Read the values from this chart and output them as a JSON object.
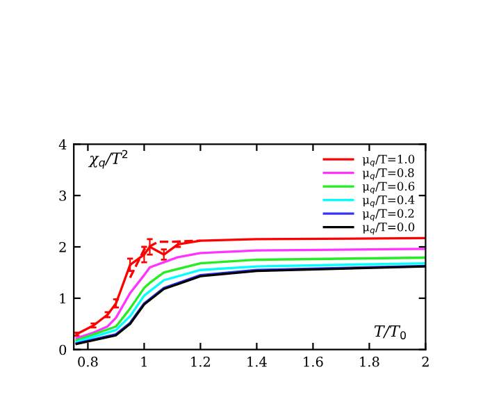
{
  "chart_data": {
    "type": "line",
    "xlabel": "T/T$_{0}$",
    "ylabel": "χ$_{q}$/T$^{2}$",
    "xlim": [
      0.75,
      2.0
    ],
    "ylim": [
      0,
      4
    ],
    "xticks": [
      0.8,
      1,
      1.2,
      1.4,
      1.6,
      1.8,
      2
    ],
    "yticks": [
      0,
      1,
      2,
      3,
      4
    ],
    "grid": false,
    "legend": "top right",
    "series": [
      {
        "name": "μ$_{q}$/T=1.0",
        "color": "#ff0000",
        "x": [
          0.76,
          0.82,
          0.87,
          0.9,
          0.95,
          1.0,
          1.02,
          1.07,
          1.12,
          1.2,
          1.4,
          2.0
        ],
        "values": [
          0.3,
          0.47,
          0.68,
          0.9,
          1.65,
          1.85,
          2.0,
          1.85,
          2.05,
          2.12,
          2.15,
          2.17
        ],
        "errors": [
          0.03,
          0.04,
          0.05,
          0.08,
          0.12,
          0.15,
          0.15,
          0.1,
          0.05,
          null,
          null,
          null
        ]
      },
      {
        "color": "#ff0000",
        "line_style": "dashed",
        "x": [
          0.95,
          1.0,
          1.05,
          1.1,
          1.2
        ],
        "values": [
          1.4,
          1.95,
          2.1,
          2.1,
          2.12
        ]
      },
      {
        "name": "μ$_{q}$/T=0.8",
        "color": "#ff33ff",
        "x": [
          0.76,
          0.82,
          0.87,
          0.9,
          0.95,
          1.0,
          1.02,
          1.07,
          1.12,
          1.2,
          1.4,
          2.0
        ],
        "values": [
          0.22,
          0.33,
          0.45,
          0.62,
          1.1,
          1.45,
          1.6,
          1.7,
          1.8,
          1.88,
          1.93,
          1.96
        ]
      },
      {
        "name": "μ$_{q}$/T=0.6",
        "color": "#22ee22",
        "x": [
          0.76,
          0.9,
          0.95,
          1.0,
          1.02,
          1.07,
          1.2,
          1.4,
          2.0
        ],
        "values": [
          0.18,
          0.45,
          0.8,
          1.2,
          1.3,
          1.5,
          1.68,
          1.75,
          1.79
        ]
      },
      {
        "name": "μ$_{q}$/T=0.4",
        "color": "#00ffff",
        "x": [
          0.76,
          0.9,
          0.95,
          1.0,
          1.07,
          1.2,
          1.4,
          2.0
        ],
        "values": [
          0.15,
          0.38,
          0.65,
          1.05,
          1.35,
          1.55,
          1.62,
          1.68
        ]
      },
      {
        "name": "μ$_{q}$/T=0.2",
        "color": "#3333ff",
        "x": [
          0.76,
          0.9,
          0.95,
          1.0,
          1.07,
          1.2,
          1.4,
          2.0
        ],
        "values": [
          0.12,
          0.3,
          0.52,
          0.9,
          1.2,
          1.45,
          1.55,
          1.63
        ]
      },
      {
        "name": "μ$_{q}$/T=0.0",
        "color": "#000000",
        "x": [
          0.76,
          0.9,
          0.95,
          1.0,
          1.07,
          1.2,
          1.4,
          2.0
        ],
        "values": [
          0.11,
          0.28,
          0.5,
          0.88,
          1.18,
          1.43,
          1.53,
          1.62
        ]
      }
    ]
  }
}
